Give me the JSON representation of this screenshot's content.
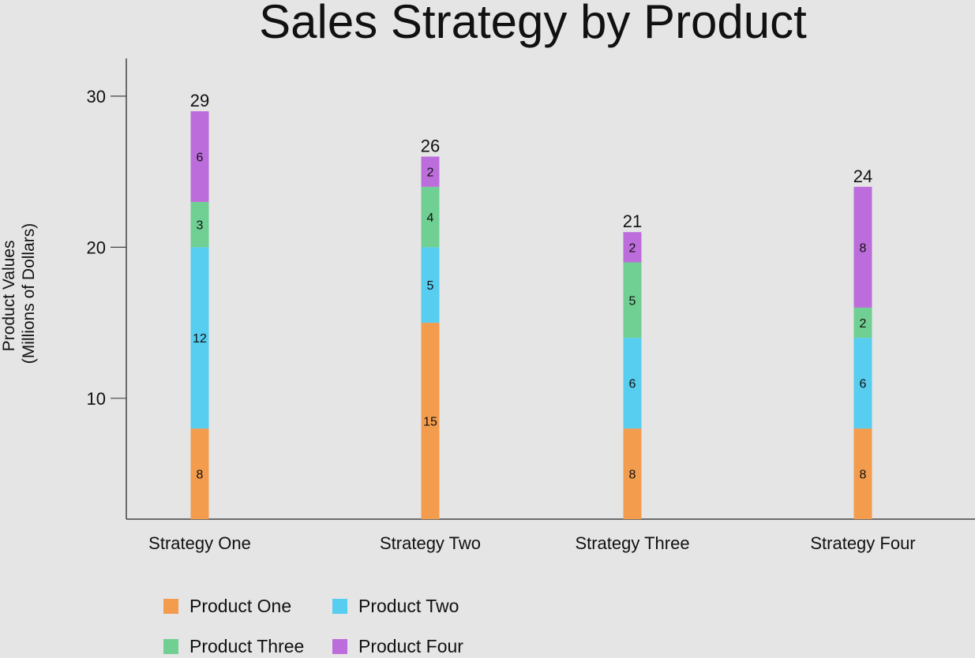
{
  "chart_data": {
    "type": "bar",
    "stacked": true,
    "title": "Sales Strategy by Product",
    "ylabel_lines": [
      "Product Values",
      "(Millions of Dollars)"
    ],
    "xlabel": "",
    "categories": [
      "Strategy One",
      "Strategy Two",
      "Strategy Three",
      "Strategy Four"
    ],
    "series": [
      {
        "name": "Product One",
        "color": "#f39c4e",
        "values": [
          8,
          15,
          8,
          8
        ]
      },
      {
        "name": "Product Two",
        "color": "#57cdf0",
        "values": [
          12,
          5,
          6,
          6
        ]
      },
      {
        "name": "Product Three",
        "color": "#70cf92",
        "values": [
          3,
          4,
          5,
          2
        ]
      },
      {
        "name": "Product Four",
        "color": "#bc6ddb",
        "values": [
          6,
          2,
          2,
          8
        ]
      }
    ],
    "totals": [
      29,
      26,
      21,
      24
    ],
    "y_ticks": [
      10,
      20,
      30
    ],
    "ylim": [
      2,
      32.5
    ],
    "grid": false,
    "legend_position": "bottom-left"
  }
}
